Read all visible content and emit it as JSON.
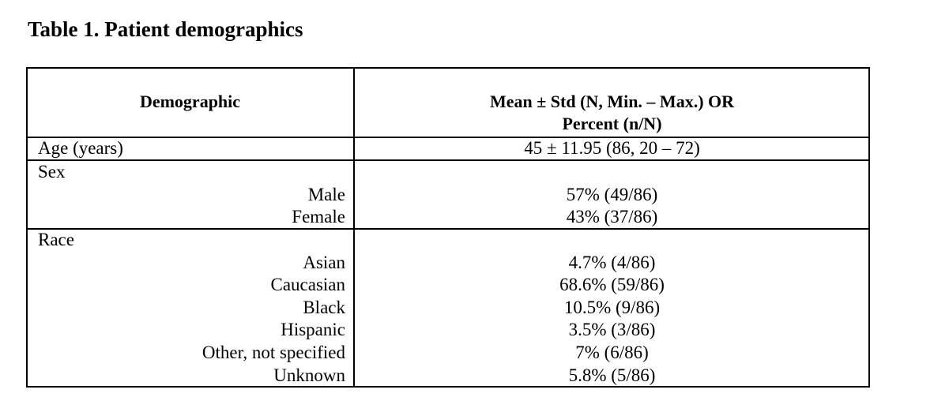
{
  "title": "Table 1.  Patient demographics",
  "table": {
    "columns": [
      [
        "Demographic"
      ],
      [
        "Mean ± Std (N, Min. – Max.) OR",
        "Percent (n/N)"
      ]
    ],
    "rows": [
      {
        "label": "Age (years)",
        "value": "45 ± 11.95 (86, 20 – 72)"
      },
      {
        "label": "Sex",
        "items": [
          {
            "label": "Male",
            "value": "57% (49/86)"
          },
          {
            "label": "Female",
            "value": "43% (37/86)"
          }
        ]
      },
      {
        "label": "Race",
        "items": [
          {
            "label": "Asian",
            "value": "4.7% (4/86)"
          },
          {
            "label": "Caucasian",
            "value": "68.6% (59/86)"
          },
          {
            "label": "Black",
            "value": "10.5% (9/86)"
          },
          {
            "label": "Hispanic",
            "value": "3.5% (3/86)"
          },
          {
            "label": "Other, not specified",
            "value": "7% (6/86)"
          },
          {
            "label": "Unknown",
            "value": "5.8% (5/86)"
          }
        ]
      }
    ]
  }
}
